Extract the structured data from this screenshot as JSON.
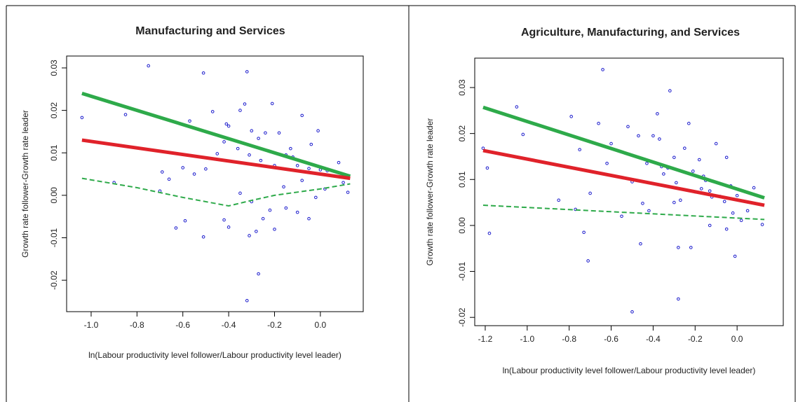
{
  "chart_data": [
    {
      "type": "scatter",
      "title": "Manufacturing and Services",
      "x_label": "ln(Labour productivity level follower/Labour productivity level leader)",
      "y_label": "Growth rate follower-Growth rate leader",
      "xlim": [
        -1.107,
        0.187
      ],
      "ylim": [
        -0.0274,
        0.0328
      ],
      "xticks": [
        {
          "value": -1,
          "label": "-1.0"
        },
        -0.8,
        -0.6,
        -0.4,
        -0.2,
        {
          "value": 0,
          "label": "0.0"
        }
      ],
      "yticks": [
        -0.02,
        -0.01,
        {
          "value": 0,
          "label": "0.00"
        },
        0.01,
        0.02,
        0.03
      ],
      "series": [
        {
          "type": "points",
          "color": "#1a1acc",
          "x": [
            -1.04,
            -0.75,
            -0.85,
            -0.51,
            -0.32,
            -0.57,
            -0.47,
            -0.33,
            -0.35,
            -0.41,
            -0.4,
            -0.21,
            -0.08,
            -0.01,
            -0.24,
            -0.18,
            -0.27,
            -0.3,
            -0.36,
            -0.42,
            -0.31,
            -0.26,
            -0.15,
            -0.12,
            -0.2,
            -0.1,
            -0.05,
            0.0,
            0.03,
            0.08,
            0.1,
            0.12,
            -0.69,
            -0.66,
            -0.6,
            -0.55,
            -0.5,
            -0.45,
            -0.7,
            -0.63,
            -0.59,
            -0.51,
            -0.42,
            -0.4,
            -0.31,
            -0.28,
            -0.25,
            -0.2,
            -0.15,
            -0.1,
            -0.05,
            -0.02,
            0.02,
            -0.35,
            -0.3,
            -0.22,
            -0.27,
            -0.32,
            -0.9,
            -0.16,
            -0.08,
            -0.13,
            -0.04
          ],
          "values": [
            0.0183,
            0.0305,
            0.019,
            0.0288,
            0.0291,
            0.0175,
            0.0197,
            0.0215,
            0.02,
            0.0168,
            0.0163,
            0.0216,
            0.0188,
            0.0152,
            0.0147,
            0.0147,
            0.0134,
            0.0152,
            0.011,
            0.0126,
            0.0095,
            0.0082,
            0.0095,
            0.009,
            0.007,
            0.007,
            0.0063,
            0.006,
            0.0058,
            0.0077,
            0.003,
            0.0007,
            0.0055,
            0.0038,
            0.0065,
            0.005,
            0.0062,
            0.0098,
            0.001,
            -0.0077,
            -0.006,
            -0.0098,
            -0.0058,
            -0.0075,
            -0.0095,
            -0.0085,
            -0.0055,
            -0.008,
            -0.003,
            -0.004,
            -0.0055,
            -0.0005,
            0.0015,
            0.0005,
            -0.0015,
            -0.0035,
            -0.0185,
            -0.0248,
            0.003,
            0.002,
            0.0035,
            0.011,
            0.012
          ]
        },
        {
          "type": "line",
          "color": "#2eaa4a",
          "width": 5,
          "x": [
            -1.04,
            0.13
          ],
          "values": [
            0.024,
            0.0045
          ]
        },
        {
          "type": "line",
          "color": "#e0222a",
          "width": 5,
          "x": [
            -1.04,
            0.13
          ],
          "values": [
            0.013,
            0.004
          ]
        },
        {
          "type": "line",
          "color": "#2eaa4a",
          "width": 2,
          "dashed": true,
          "x": [
            -1.04,
            -0.8,
            -0.6,
            -0.4,
            -0.3,
            -0.2,
            0.0,
            0.13
          ],
          "values": [
            0.004,
            0.0018,
            -0.0005,
            -0.0025,
            -0.0012,
            0.0,
            0.0015,
            0.0027
          ]
        }
      ]
    },
    {
      "type": "scatter",
      "title": "Agriculture, Manufacturing, and Services",
      "x_label": "ln(Labour productivity level follower/Labour productivity level leader)",
      "y_label": "Growth rate follower-Growth rate leader",
      "xlim": [
        -1.25,
        0.22
      ],
      "ylim": [
        -0.0218,
        0.0364
      ],
      "xticks": [
        -1.2,
        {
          "value": -1,
          "label": "-1.0"
        },
        -0.8,
        -0.6,
        -0.4,
        -0.2,
        {
          "value": 0,
          "label": "0.0"
        }
      ],
      "yticks": [
        -0.02,
        -0.01,
        {
          "value": 0,
          "label": "0.00"
        },
        0.01,
        0.02,
        0.03
      ],
      "series": [
        {
          "type": "points",
          "color": "#1a1acc",
          "x": [
            -1.21,
            -1.19,
            -1.18,
            -1.05,
            -1.02,
            -0.79,
            -0.77,
            -0.75,
            -0.73,
            -0.71,
            -0.66,
            -0.64,
            -0.6,
            -0.55,
            -0.52,
            -0.5,
            -0.47,
            -0.45,
            -0.43,
            -0.4,
            -0.38,
            -0.37,
            -0.35,
            -0.33,
            -0.32,
            -0.3,
            -0.29,
            -0.28,
            -0.27,
            -0.25,
            -0.23,
            -0.21,
            -0.2,
            -0.18,
            -0.16,
            -0.15,
            -0.13,
            -0.12,
            -0.1,
            -0.08,
            -0.06,
            -0.05,
            -0.03,
            -0.02,
            0.0,
            0.02,
            0.05,
            0.08,
            0.12,
            -0.28,
            -0.22,
            -0.13,
            -0.05,
            -0.01,
            -0.42,
            -0.46,
            -0.5,
            -0.3,
            -0.7,
            -0.85,
            -0.62,
            -0.36,
            -0.17
          ],
          "values": [
            0.0168,
            0.0125,
            -0.0017,
            0.0258,
            0.0198,
            0.0237,
            0.0035,
            0.0165,
            -0.0015,
            -0.0077,
            0.0222,
            0.0339,
            0.0178,
            0.002,
            0.0215,
            -0.0188,
            0.0195,
            0.0048,
            0.0135,
            0.0195,
            0.0243,
            0.0188,
            0.0112,
            0.0125,
            0.0293,
            0.0148,
            0.0093,
            -0.016,
            0.0055,
            0.0168,
            0.0222,
            0.0118,
            0.0073,
            0.0143,
            0.0107,
            0.0098,
            0.0075,
            0.0062,
            0.0178,
            0.0063,
            0.0052,
            0.0148,
            0.0086,
            0.0027,
            0.0065,
            0.0011,
            0.0032,
            0.0082,
            0.0002,
            -0.0048,
            -0.0048,
            0.0,
            -0.0008,
            -0.0067,
            0.0032,
            -0.004,
            0.0095,
            0.005,
            0.007,
            0.0055,
            0.0135,
            0.0128,
            0.008
          ]
        },
        {
          "type": "line",
          "color": "#2eaa4a",
          "width": 5,
          "x": [
            -1.21,
            0.13
          ],
          "values": [
            0.0257,
            0.006
          ]
        },
        {
          "type": "line",
          "color": "#e0222a",
          "width": 5,
          "x": [
            -1.21,
            0.13
          ],
          "values": [
            0.0163,
            0.0044
          ]
        },
        {
          "type": "line",
          "color": "#2eaa4a",
          "width": 2,
          "dashed": true,
          "x": [
            -1.21,
            0.13
          ],
          "values": [
            0.0044,
            0.0013
          ]
        }
      ]
    }
  ]
}
